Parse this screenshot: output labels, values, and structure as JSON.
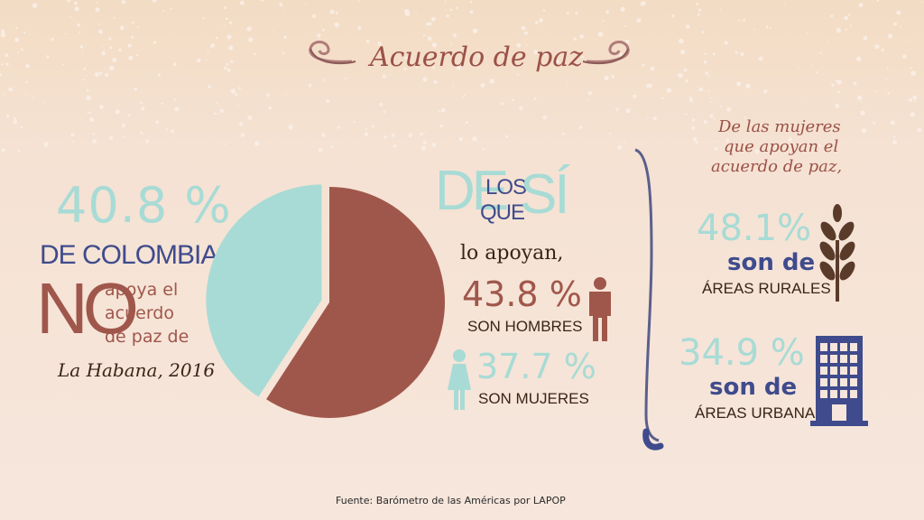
{
  "title": "Acuerdo de paz",
  "left": {
    "pct": "40.8 %",
    "line1": "DE COLOMBIANOS",
    "no": "NO",
    "apoya": "apoya el",
    "acuerdo": "acuerdo",
    "depaz": "de paz de",
    "habana": "La Habana, 2016"
  },
  "chart_data": {
    "type": "pie",
    "values": [
      40.8,
      59.2
    ],
    "colors": [
      "#a8dbd5",
      "#a0574b"
    ]
  },
  "middle": {
    "de": "DE",
    "los": "LOS",
    "que": "QUE",
    "si": "SÍ",
    "apoyan": "lo apoyan,",
    "men_pct": "43.8 %",
    "men_label": "SON HOMBRES",
    "women_pct": "37.7 %",
    "women_label": "SON MUJERES",
    "man_color": "#a0574b",
    "woman_color": "#a8dbd5"
  },
  "right": {
    "heading1": "De las mujeres",
    "heading2": "que apoyan el",
    "heading3": "acuerdo de paz,",
    "rural_pct": "48.1%",
    "rural_son": "son de",
    "rural_label": "ÁREAS RURALES",
    "urban_pct": "34.9 %",
    "urban_son": "son de",
    "urban_label": "ÁREAS URBANAS",
    "wheat_color": "#5a3b2a",
    "building_color": "#3f4b8c"
  },
  "source": "Fuente: Barómetro de las Américas por LAPOP"
}
